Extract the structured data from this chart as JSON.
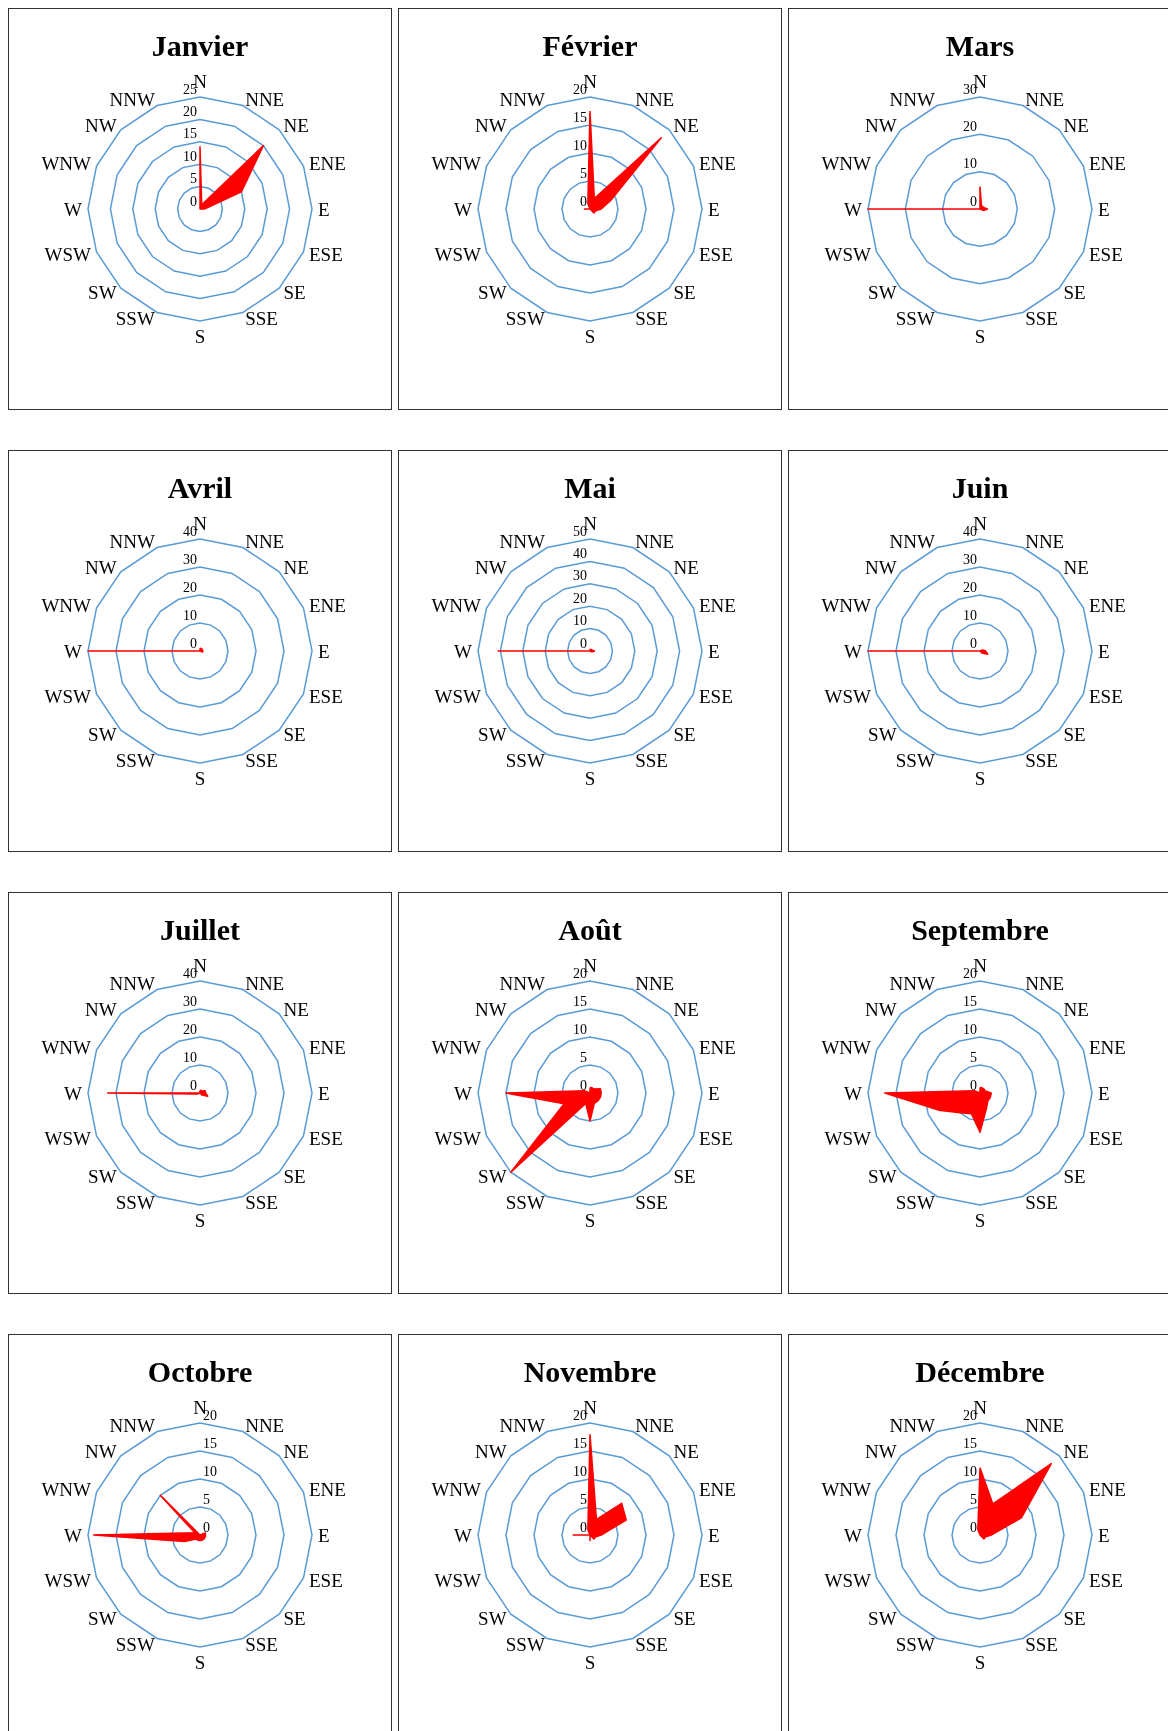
{
  "chart_data": [
    {
      "type": "radar",
      "title": "Janvier",
      "categories": [
        "N",
        "NNE",
        "NE",
        "ENE",
        "E",
        "ESE",
        "SE",
        "SSE",
        "S",
        "SSW",
        "SW",
        "WSW",
        "W",
        "WNW",
        "NW",
        "NNW"
      ],
      "series": [
        {
          "color": "#ff0000",
          "values": [
            14,
            1,
            20,
            10,
            1,
            0,
            0,
            0,
            0,
            0,
            0,
            0,
            0,
            0,
            0,
            0
          ]
        }
      ],
      "ylim": [
        0,
        25
      ],
      "yticks": [
        0,
        5,
        10,
        15,
        20,
        25
      ],
      "grid": true,
      "marker": "none"
    },
    {
      "type": "radar",
      "title": "Février",
      "categories": [
        "N",
        "NNE",
        "NE",
        "ENE",
        "E",
        "ESE",
        "SE",
        "SSE",
        "S",
        "SSW",
        "SW",
        "WSW",
        "W",
        "WNW",
        "NW",
        "NNW"
      ],
      "series": [
        {
          "color": "#ff0000",
          "values": [
            17.5,
            2,
            18,
            4,
            2,
            1,
            1,
            0,
            0,
            0,
            0,
            0,
            1,
            0,
            0,
            1
          ]
        }
      ],
      "ylim": [
        0,
        20
      ],
      "yticks": [
        0,
        5,
        10,
        15,
        20
      ],
      "grid": true,
      "marker": "none"
    },
    {
      "type": "radar",
      "title": "Mars",
      "categories": [
        "N",
        "NNE",
        "NE",
        "ENE",
        "E",
        "ESE",
        "SE",
        "SSE",
        "S",
        "SSW",
        "SW",
        "WSW",
        "W",
        "WNW",
        "NW",
        "NNW"
      ],
      "series": [
        {
          "color": "#ff0000",
          "values": [
            6,
            1,
            1,
            1,
            2,
            1,
            0,
            0,
            0,
            0,
            0,
            0,
            30,
            0,
            0,
            0
          ]
        }
      ],
      "ylim": [
        0,
        30
      ],
      "yticks": [
        0,
        10,
        20,
        30
      ],
      "grid": true,
      "marker": "none"
    },
    {
      "type": "radar",
      "title": "Avril",
      "categories": [
        "N",
        "NNE",
        "NE",
        "ENE",
        "E",
        "ESE",
        "SE",
        "SSE",
        "S",
        "SSW",
        "SW",
        "WSW",
        "W",
        "WNW",
        "NW",
        "NNW"
      ],
      "series": [
        {
          "color": "#ff0000",
          "values": [
            1,
            1,
            1,
            1,
            1,
            1,
            0,
            0,
            0,
            0,
            0,
            0,
            40,
            0,
            0,
            0
          ]
        }
      ],
      "ylim": [
        0,
        40
      ],
      "yticks": [
        0,
        10,
        20,
        30,
        40
      ],
      "grid": true,
      "marker": "none"
    },
    {
      "type": "radar",
      "title": "Mai",
      "categories": [
        "N",
        "NNE",
        "NE",
        "ENE",
        "E",
        "ESE",
        "SE",
        "SSE",
        "S",
        "SSW",
        "SW",
        "WSW",
        "W",
        "WNW",
        "NW",
        "NNW"
      ],
      "series": [
        {
          "color": "#ff0000",
          "values": [
            1,
            0,
            1,
            1,
            2,
            1,
            0,
            0,
            0,
            0,
            0,
            0,
            41,
            0,
            0,
            0
          ]
        }
      ],
      "ylim": [
        0,
        50
      ],
      "yticks": [
        0,
        10,
        20,
        30,
        40,
        50
      ],
      "grid": true,
      "marker": "none"
    },
    {
      "type": "radar",
      "title": "Juin",
      "categories": [
        "N",
        "NNE",
        "NE",
        "ENE",
        "E",
        "ESE",
        "SE",
        "SSE",
        "S",
        "SSW",
        "SW",
        "WSW",
        "W",
        "WNW",
        "NW",
        "NNW"
      ],
      "series": [
        {
          "color": "#ff0000",
          "values": [
            0,
            0,
            0,
            1,
            2,
            3,
            1,
            0,
            0,
            0,
            0,
            0,
            40,
            0,
            0,
            0
          ]
        }
      ],
      "ylim": [
        0,
        40
      ],
      "yticks": [
        0,
        10,
        20,
        30,
        40
      ],
      "grid": true,
      "marker": "none"
    },
    {
      "type": "radar",
      "title": "Juillet",
      "categories": [
        "N",
        "NNE",
        "NE",
        "ENE",
        "E",
        "ESE",
        "SE",
        "SSE",
        "S",
        "SSW",
        "SW",
        "WSW",
        "W",
        "WNW",
        "NW",
        "NNW"
      ],
      "series": [
        {
          "color": "#ff0000",
          "values": [
            1,
            1,
            1,
            2,
            2,
            3,
            1,
            0,
            0,
            0,
            0,
            1,
            33,
            0,
            0,
            0
          ]
        }
      ],
      "ylim": [
        0,
        40
      ],
      "yticks": [
        0,
        10,
        20,
        30,
        40
      ],
      "grid": true,
      "marker": "none"
    },
    {
      "type": "radar",
      "title": "Août",
      "categories": [
        "N",
        "NNE",
        "NE",
        "ENE",
        "E",
        "ESE",
        "SE",
        "SSE",
        "S",
        "SSW",
        "SW",
        "WSW",
        "W",
        "WNW",
        "NW",
        "NNW"
      ],
      "series": [
        {
          "color": "#ff0000",
          "values": [
            1,
            1,
            1,
            2,
            2,
            2,
            2,
            2,
            5,
            2,
            20,
            5,
            15,
            1,
            0,
            0
          ]
        }
      ],
      "ylim": [
        0,
        20
      ],
      "yticks": [
        0,
        5,
        10,
        15,
        20
      ],
      "grid": true,
      "marker": "none"
    },
    {
      "type": "radar",
      "title": "Septembre",
      "categories": [
        "N",
        "NNE",
        "NE",
        "ENE",
        "E",
        "ESE",
        "SE",
        "SSE",
        "S",
        "SSW",
        "SW",
        "WSW",
        "W",
        "WNW",
        "NW",
        "NNW"
      ],
      "series": [
        {
          "color": "#ff0000",
          "values": [
            1,
            1,
            1,
            1,
            2,
            2,
            2,
            3,
            7,
            4,
            5,
            8,
            17,
            1,
            0,
            0
          ]
        }
      ],
      "ylim": [
        0,
        20
      ],
      "yticks": [
        0,
        5,
        10,
        15,
        20
      ],
      "grid": true,
      "marker": "none"
    },
    {
      "type": "radar",
      "title": "Octobre",
      "categories": [
        "N",
        "NNE",
        "NE",
        "ENE",
        "E",
        "ESE",
        "SE",
        "SSE",
        "S",
        "SSW",
        "SW",
        "WSW",
        "W",
        "WNW",
        "NW",
        "NNW"
      ],
      "series": [
        {
          "color": "#ff0000",
          "values": [
            0,
            0,
            0,
            1,
            1,
            1,
            1,
            1,
            1,
            1,
            1,
            3,
            19,
            1,
            10,
            0
          ]
        }
      ],
      "ylim": [
        0,
        20
      ],
      "yticks": [
        0,
        5,
        10,
        15,
        20
      ],
      "grid": true,
      "marker": "none"
    },
    {
      "type": "radar",
      "title": "Novembre",
      "categories": [
        "N",
        "NNE",
        "NE",
        "ENE",
        "E",
        "ESE",
        "SE",
        "SSE",
        "S",
        "SSW",
        "SW",
        "WSW",
        "W",
        "WNW",
        "NW",
        "NNW"
      ],
      "series": [
        {
          "color": "#ff0000",
          "values": [
            18,
            3,
            8,
            7,
            2,
            1,
            1,
            0,
            1,
            0,
            0,
            0,
            3,
            0,
            0,
            1
          ]
        }
      ],
      "ylim": [
        0,
        20
      ],
      "yticks": [
        0,
        5,
        10,
        15,
        20
      ],
      "grid": true,
      "marker": "none"
    },
    {
      "type": "radar",
      "title": "Décembre",
      "categories": [
        "N",
        "NNE",
        "NE",
        "ENE",
        "E",
        "ESE",
        "SE",
        "SSE",
        "S",
        "SSW",
        "SW",
        "WSW",
        "W",
        "WNW",
        "NW",
        "NNW"
      ],
      "series": [
        {
          "color": "#ff0000",
          "values": [
            12,
            6,
            18,
            8,
            2,
            1,
            1,
            0,
            0,
            0,
            0,
            0,
            0,
            0,
            0,
            1
          ]
        }
      ],
      "ylim": [
        0,
        20
      ],
      "yticks": [
        0,
        5,
        10,
        15,
        20
      ],
      "grid": true,
      "marker": "none"
    }
  ]
}
